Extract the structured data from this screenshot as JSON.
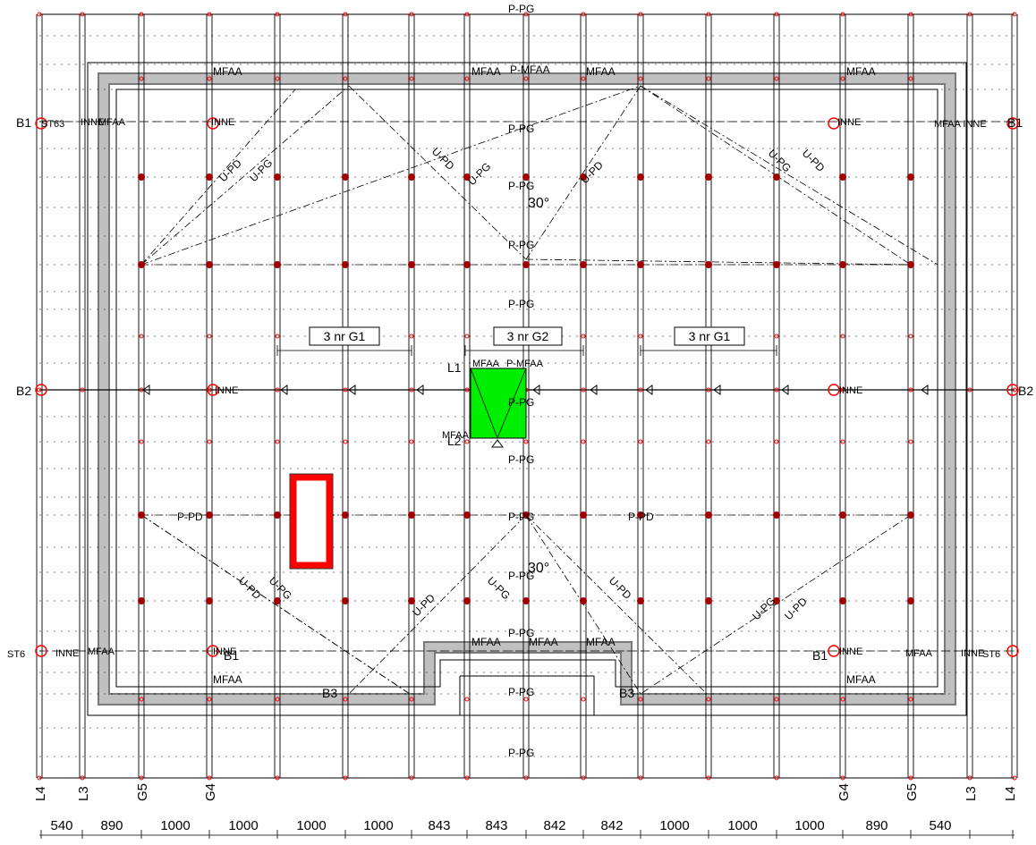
{
  "dimensions": [
    "540",
    "890",
    "1000",
    "1000",
    "1000",
    "1000",
    "843",
    "843",
    "842",
    "842",
    "1000",
    "1000",
    "1000",
    "890",
    "540"
  ],
  "axis_labels": {
    "left": [
      "L4",
      "L3",
      "G5",
      "G4"
    ],
    "right": [
      "G4",
      "G5",
      "L3",
      "L4"
    ]
  },
  "bays": [
    {
      "label": "3 nr  G1"
    },
    {
      "label": "3 nr  G2"
    },
    {
      "label": "3 nr  G1"
    }
  ],
  "angles": [
    "30°",
    "30°"
  ],
  "beam_labels": {
    "top": "P-PG",
    "p_pg": "P-PG",
    "p_pd": "P-PD",
    "u_pd": "U-PD",
    "u_pg": "U-PG",
    "mfaa": "MFAA",
    "inne": "INNE",
    "mfaa_inne": "MFAA INNE",
    "p_mfaa": "P-MFAA"
  },
  "side_labels": {
    "b1": "B1",
    "b2": "B2",
    "b3": "B3",
    "st6": "ST6",
    "l1": "L1",
    "l2": "L2",
    "l3": "L3",
    "l4": "L4",
    "st6_left": "ST63",
    "st6_right": "ST6"
  },
  "colors": {
    "opening": "#00ee00",
    "marker": "#ff0000",
    "parapet": "#c0c0c0",
    "line": "#000000"
  },
  "icons": {
    "opening": "green-hatch-opening-icon",
    "hole": "red-rectangle-opening-icon",
    "support": "red-support-circle-icon"
  }
}
